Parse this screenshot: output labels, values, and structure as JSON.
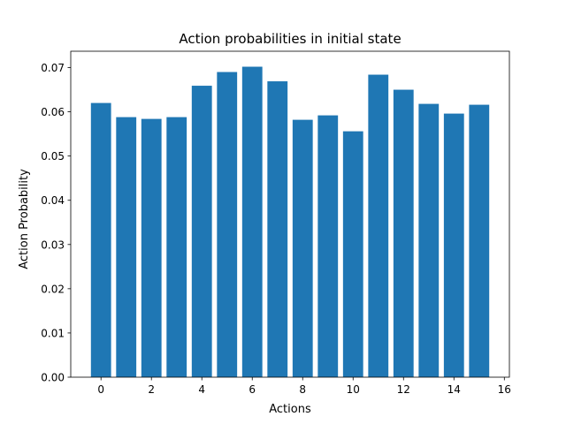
{
  "chart_data": {
    "type": "bar",
    "title": "Action probabilities in initial state",
    "xlabel": "Actions",
    "ylabel": "Action Probability",
    "x": [
      0,
      1,
      2,
      3,
      4,
      5,
      6,
      7,
      8,
      9,
      10,
      11,
      12,
      13,
      14,
      15
    ],
    "values": [
      0.062,
      0.0588,
      0.0584,
      0.0588,
      0.0659,
      0.069,
      0.0702,
      0.0669,
      0.0582,
      0.0592,
      0.0556,
      0.0684,
      0.065,
      0.0618,
      0.0596,
      0.0616
    ],
    "xlim": [
      -1.2,
      16.2
    ],
    "ylim": [
      0,
      0.0737
    ],
    "xticks": [
      0,
      2,
      4,
      6,
      8,
      10,
      12,
      14,
      16
    ],
    "yticks": [
      0.0,
      0.01,
      0.02,
      0.03,
      0.04,
      0.05,
      0.06,
      0.07
    ],
    "ytick_labels": [
      "0.00",
      "0.01",
      "0.02",
      "0.03",
      "0.04",
      "0.05",
      "0.06",
      "0.07"
    ],
    "bar_color": "#1f77b4",
    "grid": false
  }
}
